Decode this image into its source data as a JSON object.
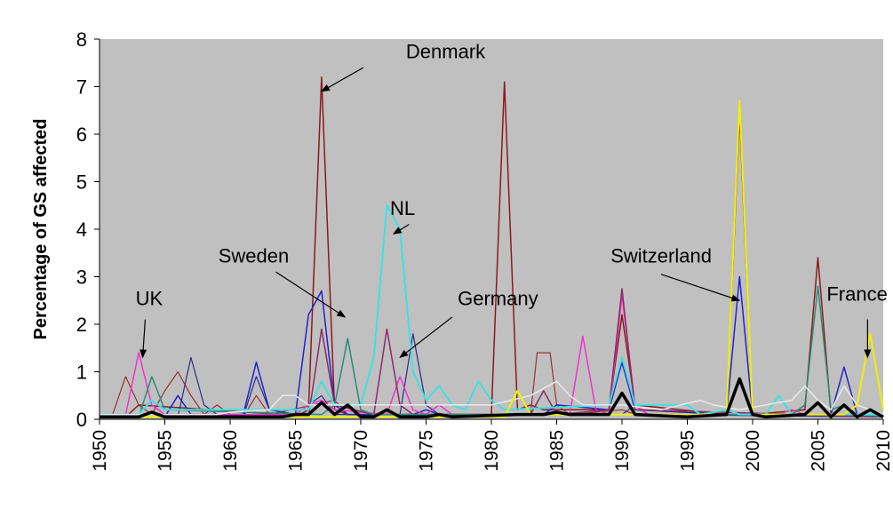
{
  "chart_data": {
    "type": "line",
    "ylabel": "Percentage of GS affected",
    "xlabel": "",
    "title": "",
    "xlim": [
      1950,
      2010
    ],
    "ylim": [
      0,
      8
    ],
    "x_ticks": [
      "1950",
      "1955",
      "1960",
      "1965",
      "1970",
      "1975",
      "1980",
      "1985",
      "1990",
      "1995",
      "2000",
      "2005",
      "2010"
    ],
    "y_ticks": [
      "0",
      "1",
      "2",
      "3",
      "4",
      "5",
      "6",
      "7",
      "8"
    ],
    "grid": false,
    "background": "#c0c0c0",
    "annotations": [
      {
        "text": "Denmark",
        "arrow": true,
        "target": [
          1967,
          6.9
        ]
      },
      {
        "text": "NL",
        "arrow": true,
        "target": [
          1972.5,
          3.9
        ]
      },
      {
        "text": "Sweden",
        "arrow": true,
        "target": [
          1968.8,
          2.15
        ]
      },
      {
        "text": "UK",
        "arrow": true,
        "target": [
          1953.3,
          1.3
        ]
      },
      {
        "text": "Germany",
        "arrow": true,
        "target": [
          1973,
          1.3
        ]
      },
      {
        "text": "Switzerland",
        "arrow": true,
        "target": [
          1999,
          2.5
        ]
      },
      {
        "text": "France",
        "arrow": true,
        "target": [
          2008.8,
          1.3
        ]
      }
    ],
    "series": [
      {
        "color": "#8b1a1a",
        "width": 1.5,
        "points": [
          [
            1950,
            0.05
          ],
          [
            1952,
            0.05
          ],
          [
            1953,
            0.3
          ],
          [
            1964,
            0.1
          ],
          [
            1965,
            0.05
          ],
          [
            1966,
            0.2
          ],
          [
            1967,
            7.2
          ],
          [
            1968,
            0.2
          ],
          [
            1969,
            0.1
          ],
          [
            1980,
            0.1
          ],
          [
            1981,
            7.1
          ],
          [
            1982,
            0.2
          ],
          [
            1983,
            0.3
          ],
          [
            1984,
            0.2
          ],
          [
            1989,
            0.2
          ],
          [
            1990,
            2.2
          ],
          [
            1991,
            0.3
          ],
          [
            1998,
            0.1
          ],
          [
            1999,
            6.4
          ],
          [
            2000,
            0.1
          ],
          [
            2004,
            0.2
          ],
          [
            2005,
            3.4
          ],
          [
            2006,
            0.1
          ],
          [
            2010,
            0.05
          ]
        ]
      },
      {
        "color": "#9b3030",
        "width": 1.2,
        "points": [
          [
            1950,
            0.05
          ],
          [
            1951,
            0.1
          ],
          [
            1952,
            0.9
          ],
          [
            1953,
            0.3
          ],
          [
            1954,
            0.1
          ],
          [
            1955,
            0.6
          ],
          [
            1956,
            1.0
          ],
          [
            1957,
            0.5
          ],
          [
            1958,
            0.1
          ],
          [
            1959,
            0.3
          ],
          [
            1960,
            0.1
          ],
          [
            1961,
            0.05
          ],
          [
            1962,
            0.5
          ],
          [
            1963,
            0.1
          ],
          [
            1968,
            0.4
          ],
          [
            1969,
            0.1
          ],
          [
            1983,
            0.1
          ],
          [
            1983.5,
            1.4
          ],
          [
            1984.5,
            1.4
          ],
          [
            1985,
            0.3
          ],
          [
            1986,
            0.1
          ],
          [
            1990,
            0.2
          ],
          [
            1991,
            0.1
          ],
          [
            2000,
            0.1
          ],
          [
            2010,
            0.05
          ]
        ]
      },
      {
        "color": "#2222cc",
        "width": 1.5,
        "points": [
          [
            1950,
            0.05
          ],
          [
            1955,
            0.05
          ],
          [
            1956,
            0.5
          ],
          [
            1957,
            0.1
          ],
          [
            1961,
            0.1
          ],
          [
            1962,
            1.2
          ],
          [
            1963,
            0.2
          ],
          [
            1965,
            0.1
          ],
          [
            1966,
            2.2
          ],
          [
            1967,
            2.7
          ],
          [
            1968,
            0.3
          ],
          [
            1969,
            0.1
          ],
          [
            1974,
            0.1
          ],
          [
            1975,
            0.2
          ],
          [
            1976,
            0.1
          ],
          [
            1984,
            0.1
          ],
          [
            1985,
            0.3
          ],
          [
            1989,
            0.2
          ],
          [
            1990,
            1.2
          ],
          [
            1991,
            0.2
          ],
          [
            1998,
            0.1
          ],
          [
            1999,
            3.0
          ],
          [
            2000,
            0.1
          ],
          [
            2006,
            0.1
          ],
          [
            2007,
            1.1
          ],
          [
            2008,
            0.1
          ],
          [
            2010,
            0.05
          ]
        ]
      },
      {
        "color": "#2a2a8a",
        "width": 1.2,
        "points": [
          [
            1950,
            0.05
          ],
          [
            1956,
            0.05
          ],
          [
            1957,
            1.3
          ],
          [
            1958,
            0.3
          ],
          [
            1959,
            0.1
          ],
          [
            1961,
            0.05
          ],
          [
            1962,
            0.9
          ],
          [
            1963,
            0.2
          ],
          [
            1965,
            0.1
          ],
          [
            1966,
            0.3
          ],
          [
            1967,
            0.5
          ],
          [
            1968,
            0.1
          ],
          [
            1973,
            0.1
          ],
          [
            1974,
            1.8
          ],
          [
            1975,
            0.3
          ],
          [
            1976,
            0.1
          ],
          [
            1990,
            0.1
          ],
          [
            1991,
            0.3
          ],
          [
            1992,
            0.1
          ],
          [
            2010,
            0.05
          ]
        ]
      },
      {
        "color": "#ee33cc",
        "width": 1.5,
        "points": [
          [
            1950,
            0.05
          ],
          [
            1952,
            0.1
          ],
          [
            1953,
            1.4
          ],
          [
            1954,
            0.3
          ],
          [
            1955,
            0.1
          ],
          [
            1965,
            0.1
          ],
          [
            1966,
            0.3
          ],
          [
            1967,
            0.4
          ],
          [
            1968,
            0.2
          ],
          [
            1972,
            0.1
          ],
          [
            1973,
            0.9
          ],
          [
            1974,
            0.2
          ],
          [
            1975,
            0.1
          ],
          [
            1976,
            0.3
          ],
          [
            1977,
            0.1
          ],
          [
            1986,
            0.1
          ],
          [
            1987,
            1.75
          ],
          [
            1988,
            0.2
          ],
          [
            1989,
            0.1
          ],
          [
            1990,
            2.6
          ],
          [
            1991,
            0.3
          ],
          [
            1992,
            0.1
          ],
          [
            2002,
            0.1
          ],
          [
            2003,
            0.2
          ],
          [
            2004,
            0.1
          ],
          [
            2010,
            0.05
          ]
        ]
      },
      {
        "color": "#8b2a6a",
        "width": 1.5,
        "points": [
          [
            1950,
            0.05
          ],
          [
            1966,
            0.05
          ],
          [
            1967,
            1.9
          ],
          [
            1968,
            0.3
          ],
          [
            1971,
            0.1
          ],
          [
            1972,
            1.9
          ],
          [
            1973,
            0.3
          ],
          [
            1974,
            0.1
          ],
          [
            1983,
            0.1
          ],
          [
            1984,
            0.6
          ],
          [
            1985,
            0.1
          ],
          [
            1989,
            0.2
          ],
          [
            1990,
            2.75
          ],
          [
            1991,
            0.2
          ],
          [
            2010,
            0.05
          ]
        ]
      },
      {
        "color": "#2a8a7a",
        "width": 1.5,
        "points": [
          [
            1950,
            0.05
          ],
          [
            1953,
            0.05
          ],
          [
            1954,
            0.9
          ],
          [
            1955,
            0.2
          ],
          [
            1967,
            0.1
          ],
          [
            1968,
            0.3
          ],
          [
            1969,
            1.7
          ],
          [
            1970,
            0.2
          ],
          [
            1971,
            0.1
          ],
          [
            2003,
            0.1
          ],
          [
            2004,
            0.3
          ],
          [
            2005,
            2.8
          ],
          [
            2006,
            0.2
          ],
          [
            2007,
            0.3
          ],
          [
            2008,
            0.1
          ],
          [
            2010,
            0.05
          ]
        ]
      },
      {
        "color": "#40e0e0",
        "width": 2.0,
        "points": [
          [
            1950,
            0.1
          ],
          [
            1953,
            0.1
          ],
          [
            1954,
            0.4
          ],
          [
            1955,
            0.2
          ],
          [
            1966,
            0.2
          ],
          [
            1967,
            0.8
          ],
          [
            1968,
            0.3
          ],
          [
            1970,
            0.3
          ],
          [
            1971,
            1.3
          ],
          [
            1972,
            4.5
          ],
          [
            1973,
            4.0
          ],
          [
            1974,
            1.0
          ],
          [
            1975,
            0.4
          ],
          [
            1976,
            0.7
          ],
          [
            1977,
            0.3
          ],
          [
            1978,
            0.2
          ],
          [
            1979,
            0.8
          ],
          [
            1980,
            0.4
          ],
          [
            1981,
            0.2
          ],
          [
            1989,
            0.3
          ],
          [
            1990,
            1.3
          ],
          [
            1991,
            0.3
          ],
          [
            1994,
            0.3
          ],
          [
            1995,
            0.3
          ],
          [
            1996,
            0.1
          ],
          [
            1998,
            0.2
          ],
          [
            1999,
            0.1
          ],
          [
            2001,
            0.1
          ],
          [
            2002,
            0.5
          ],
          [
            2003,
            0.1
          ],
          [
            2010,
            0.1
          ]
        ]
      },
      {
        "color": "#eaeaea",
        "width": 1.5,
        "points": [
          [
            1950,
            0.1
          ],
          [
            1959,
            0.1
          ],
          [
            1960,
            0.15
          ],
          [
            1963,
            0.2
          ],
          [
            1964,
            0.5
          ],
          [
            1965,
            0.5
          ],
          [
            1966,
            0.3
          ],
          [
            1970,
            0.3
          ],
          [
            1975,
            0.3
          ],
          [
            1980,
            0.3
          ],
          [
            1983,
            0.5
          ],
          [
            1985,
            0.8
          ],
          [
            1986,
            0.5
          ],
          [
            1987,
            0.3
          ],
          [
            1990,
            0.3
          ],
          [
            1993,
            0.2
          ],
          [
            1996,
            0.4
          ],
          [
            1997,
            0.3
          ],
          [
            1999,
            0.2
          ],
          [
            2003,
            0.4
          ],
          [
            2004,
            0.7
          ],
          [
            2005,
            0.4
          ],
          [
            2006,
            0.2
          ],
          [
            2007,
            0.7
          ],
          [
            2008,
            0.3
          ],
          [
            2010,
            0.1
          ]
        ]
      },
      {
        "color": "#f0f000",
        "width": 2.0,
        "points": [
          [
            1950,
            0.05
          ],
          [
            1981,
            0.05
          ],
          [
            1982,
            0.6
          ],
          [
            1983,
            0.1
          ],
          [
            1998,
            0.1
          ],
          [
            1999,
            6.7
          ],
          [
            2000,
            0.1
          ],
          [
            2007,
            0.1
          ],
          [
            2008,
            0.3
          ],
          [
            2009,
            1.8
          ],
          [
            2010,
            0.2
          ]
        ]
      },
      {
        "color": "#000000",
        "width": 3.5,
        "points": [
          [
            1950,
            0.05
          ],
          [
            1953,
            0.05
          ],
          [
            1954,
            0.15
          ],
          [
            1955,
            0.05
          ],
          [
            1964,
            0.05
          ],
          [
            1965,
            0.1
          ],
          [
            1966,
            0.1
          ],
          [
            1967,
            0.35
          ],
          [
            1968,
            0.1
          ],
          [
            1969,
            0.3
          ],
          [
            1970,
            0.05
          ],
          [
            1971,
            0.05
          ],
          [
            1972,
            0.2
          ],
          [
            1973,
            0.05
          ],
          [
            1975,
            0.05
          ],
          [
            1976,
            0.1
          ],
          [
            1977,
            0.05
          ],
          [
            1982,
            0.1
          ],
          [
            1984,
            0.1
          ],
          [
            1985,
            0.15
          ],
          [
            1986,
            0.1
          ],
          [
            1989,
            0.1
          ],
          [
            1990,
            0.55
          ],
          [
            1991,
            0.1
          ],
          [
            1995,
            0.05
          ],
          [
            1998,
            0.1
          ],
          [
            1999,
            0.85
          ],
          [
            2000,
            0.1
          ],
          [
            2001,
            0.05
          ],
          [
            2004,
            0.1
          ],
          [
            2005,
            0.35
          ],
          [
            2006,
            0.05
          ],
          [
            2007,
            0.3
          ],
          [
            2008,
            0.05
          ],
          [
            2009,
            0.2
          ],
          [
            2010,
            0.05
          ]
        ]
      }
    ]
  }
}
